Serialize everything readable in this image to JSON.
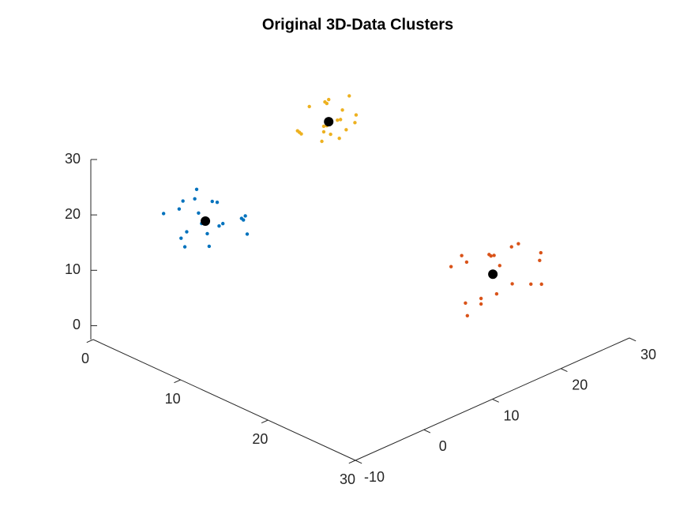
{
  "chart_data": {
    "type": "scatter3d",
    "title": "Original 3D-Data Clusters",
    "xlim": [
      0,
      30
    ],
    "ylim": [
      -10,
      30
    ],
    "zlim": [
      -2.5,
      30
    ],
    "xticks": [
      0,
      10,
      20,
      30
    ],
    "yticks": [
      -10,
      0,
      10,
      20,
      30
    ],
    "zticks": [
      0,
      10,
      20,
      30
    ],
    "series": [
      {
        "color": "#0072bd",
        "x": [
          3,
          7,
          4,
          6,
          2,
          8,
          5,
          5,
          3,
          7,
          6,
          4,
          9,
          1,
          5,
          6,
          4,
          7,
          3,
          5
        ],
        "y": [
          1,
          -2,
          3,
          -1,
          0,
          2,
          -3,
          1,
          -1,
          0,
          4,
          -2,
          1,
          -1,
          2,
          -4,
          0,
          3,
          2,
          -1
        ],
        "z": [
          19,
          15,
          18,
          16,
          17,
          19,
          14,
          20,
          13,
          18,
          16,
          21,
          17,
          16,
          15,
          18,
          22,
          17,
          14,
          19
        ]
      },
      {
        "color": "#d95319",
        "x": [
          21,
          25,
          22,
          24,
          20,
          26,
          23,
          23,
          19,
          27,
          22,
          24,
          21,
          25,
          23,
          26,
          20,
          24,
          22,
          23
        ],
        "y": [
          21,
          17,
          23,
          16,
          19,
          22,
          15,
          20,
          18,
          21,
          24,
          14,
          17,
          22,
          19,
          18,
          23,
          16,
          20,
          26
        ],
        "z": [
          11,
          9,
          12,
          8,
          10,
          13,
          7,
          11,
          9,
          10,
          12,
          6,
          13,
          8,
          10,
          11,
          9,
          7,
          12,
          10
        ]
      },
      {
        "color": "#edb120",
        "x": [
          4,
          6,
          5,
          3,
          7,
          5,
          4,
          6,
          5,
          2,
          8,
          5,
          6,
          4,
          5,
          3,
          7,
          5,
          4,
          6
        ],
        "y": [
          19,
          17,
          20,
          16,
          18,
          21,
          15,
          18,
          17,
          19,
          18,
          22,
          16,
          19,
          14,
          20,
          17,
          18,
          21,
          16
        ],
        "z": [
          27,
          24,
          26,
          23,
          25,
          28,
          24,
          26,
          22,
          25,
          27,
          24,
          26,
          23,
          25,
          26,
          24,
          29,
          23,
          25
        ]
      }
    ],
    "centroids": {
      "color": "#000000",
      "x": [
        5,
        23,
        5
      ],
      "y": [
        0,
        19,
        18
      ],
      "z": [
        17,
        10,
        25
      ]
    }
  }
}
